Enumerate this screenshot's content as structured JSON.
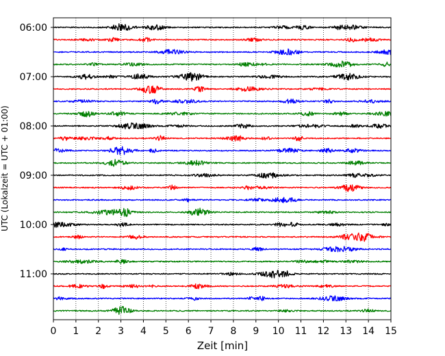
{
  "chart_data": {
    "type": "line",
    "title": "",
    "xlabel": "Zeit  [min]",
    "ylabel": "UTC (Lokalzeit = UTC + 01:00)",
    "xlim": [
      0,
      15
    ],
    "x_ticks": [
      0,
      1,
      2,
      3,
      4,
      5,
      6,
      7,
      8,
      9,
      10,
      11,
      12,
      13,
      14,
      15
    ],
    "y_tick_labels": [
      "06:00",
      "07:00",
      "08:00",
      "09:00",
      "10:00",
      "11:00"
    ],
    "trace_minutes": 15,
    "first_trace": "06:00",
    "grid": {
      "vertical": true,
      "horizontal": false,
      "style": "dotted"
    },
    "trace_colors": [
      "#000000",
      "#ff0000",
      "#0000ff",
      "#007f00"
    ],
    "traces": [
      "06:00",
      "06:15",
      "06:30",
      "06:45",
      "07:00",
      "07:15",
      "07:30",
      "07:45",
      "08:00",
      "08:15",
      "08:30",
      "08:45",
      "09:00",
      "09:15",
      "09:30",
      "09:45",
      "10:00",
      "10:15",
      "10:30",
      "10:45",
      "11:00",
      "11:15",
      "11:30",
      "11:45"
    ]
  }
}
